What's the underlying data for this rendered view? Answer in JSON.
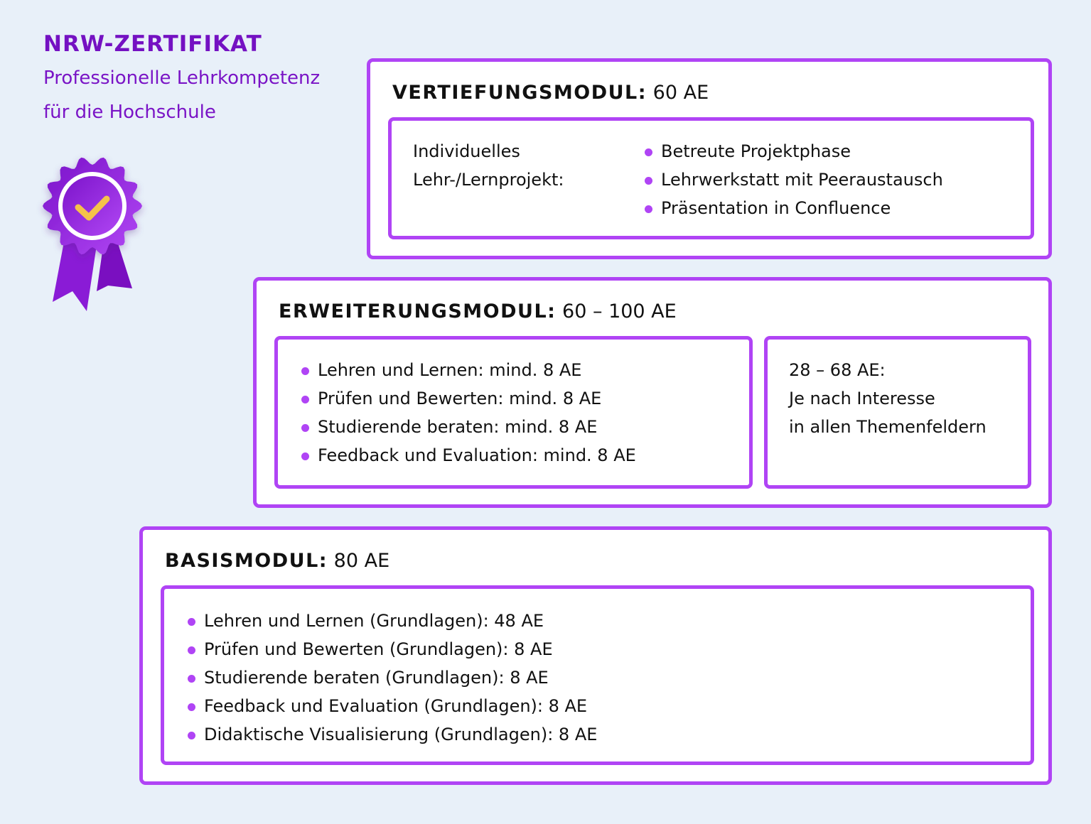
{
  "header": {
    "title": "NRW-ZERTIFIKAT",
    "subtitle_line1": "Professionelle Lehrkompetenz",
    "subtitle_line2": "für die Hochschule",
    "badge_icon": "award-ribbon-checkmark-icon"
  },
  "colors": {
    "accent": "#b044f5",
    "title": "#7411c2",
    "background": "#e8f0f9",
    "check": "#f5c24a"
  },
  "modules": {
    "vertiefung": {
      "name": "VERTIEFUNGSMODUL:",
      "hours": "60 AE",
      "label_line1": "Individuelles",
      "label_line2": "Lehr-/Lernprojekt:",
      "items": [
        "Betreute Projektphase",
        "Lehrwerkstatt mit Peeraustausch",
        "Präsentation in Confluence"
      ]
    },
    "erweiterung": {
      "name": "ERWEITERUNGSMODUL:",
      "hours": "60 – 100 AE",
      "items": [
        "Lehren und Lernen: mind. 8 AE",
        "Prüfen und Bewerten: mind. 8 AE",
        "Studierende beraten: mind. 8 AE",
        "Feedback und Evaluation: mind. 8 AE"
      ],
      "elective_line1": "28 – 68 AE:",
      "elective_line2": "Je nach Interesse",
      "elective_line3": "in allen Themenfeldern"
    },
    "basis": {
      "name": "BASISMODUL:",
      "hours": "80 AE",
      "items": [
        "Lehren und Lernen (Grundlagen): 48 AE",
        "Prüfen und Bewerten (Grundlagen): 8 AE",
        "Studierende beraten (Grundlagen): 8 AE",
        "Feedback und Evaluation (Grundlagen): 8 AE",
        "Didaktische Visualisierung (Grundlagen): 8 AE"
      ]
    }
  }
}
